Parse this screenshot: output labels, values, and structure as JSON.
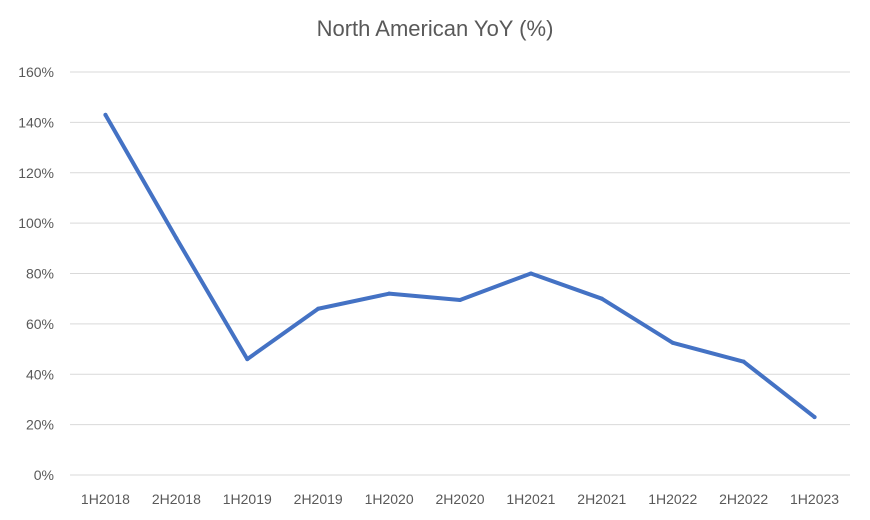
{
  "chart_data": {
    "type": "line",
    "title": "North American YoY  (%)",
    "xlabel": "",
    "ylabel": "",
    "categories": [
      "1H2018",
      "2H2018",
      "1H2019",
      "2H2019",
      "1H2020",
      "2H2020",
      "1H2021",
      "2H2021",
      "1H2022",
      "2H2022",
      "1H2023"
    ],
    "series": [
      {
        "values": [
          143,
          94,
          46,
          66,
          72,
          69.5,
          80,
          70,
          52.5,
          45,
          23
        ]
      }
    ],
    "ylim": [
      0,
      160
    ],
    "yticks": [
      0,
      20,
      40,
      60,
      80,
      100,
      120,
      140,
      160
    ],
    "ytick_format": "%",
    "grid": true,
    "legend": "none",
    "colors": {
      "line": "#4472c4",
      "grid": "#d9d9d9",
      "text": "#595959"
    }
  }
}
